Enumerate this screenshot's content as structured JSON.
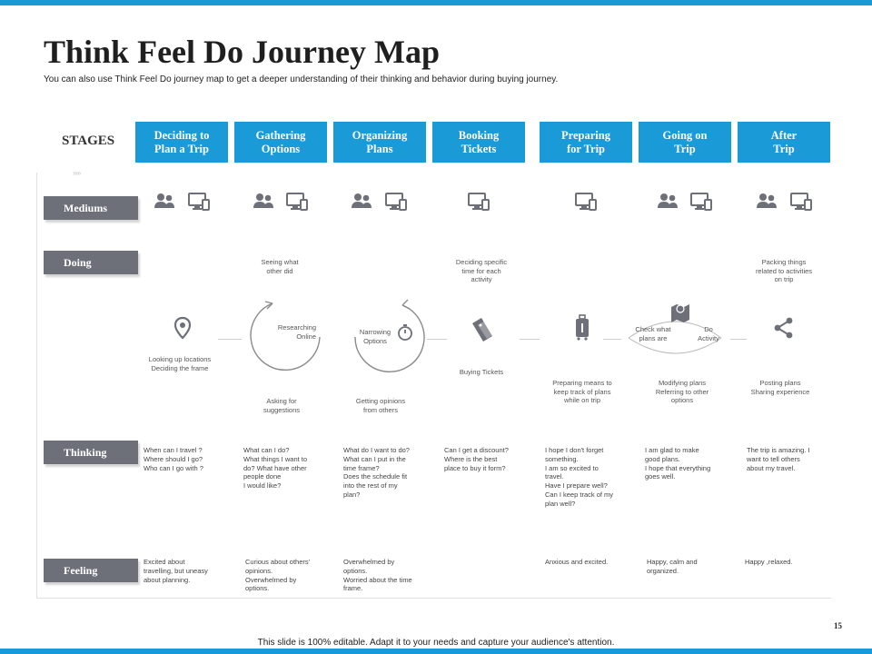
{
  "header": {
    "title": "Think Feel Do Journey Map",
    "subtitle": "You can also use Think  Feel Do journey map to get a deeper understanding of their thinking  and behavior during buying journey."
  },
  "stages": {
    "label": "STAGES",
    "items": [
      {
        "label": "Deciding to\nPlan a Trip"
      },
      {
        "label": "Gathering\nOptions"
      },
      {
        "label": "Organizing\nPlans"
      },
      {
        "label": "Booking\nTickets"
      },
      {
        "label": "Preparing\nfor Trip"
      },
      {
        "label": "Going on\nTrip"
      },
      {
        "label": "After\nTrip"
      }
    ]
  },
  "rows": {
    "mediums": "Mediums",
    "doing": "Doing",
    "thinking": "Thinking",
    "feeling": "Feeling"
  },
  "arrow_hint": "›››››",
  "doing": {
    "top": [
      "Seeing what\nother did",
      "Deciding specific\ntime for each\nactivity",
      "Packing things\nrelated to activities\non trip"
    ],
    "center": {
      "researching": "Researching\nOnline",
      "narrowing": "Narrowing\nOptions",
      "check_what": "Check what\nplans are",
      "do_activity": "Do\nActivity"
    },
    "bottom": [
      "Looking up locations\nDeciding the frame",
      "Asking for\nsuggestions",
      "Getting opinions\nfrom others",
      "Buying Tickets",
      "Preparing means to\nkeep track of plans\nwhile on trip",
      "Modifying plans\nReferring to other\noptions",
      "Posting plans\nSharing experience"
    ]
  },
  "thinking": [
    "When can I travel ?\nWhere should I go?\nWho can I go with ?",
    "What can I do?\nWhat things I want to\ndo? What have other\npeople done\nI would like?",
    "What do I want to do?\nWhat can I put in the\ntime frame?\nDoes the schedule  fit\ninto the rest of my\nplan?",
    "Can I get a discount?\nWhere is the best\nplace to buy it form?",
    "I hope I don't forget\nsomething.\nI am so excited to\ntravel.\nHave I prepare well?\nCan I keep track of my\nplan well?",
    "I am glad to make\ngood plans.\nI hope that everything\ngoes well.",
    "The trip is amazing. I\nwant to tell others\nabout  my travel."
  ],
  "feeling": [
    "Excited about\ntravelling, but uneasy\nabout planning.",
    "Curious about others'\nopinions.\nOverwhelmed by\noptions.",
    "Overwhelmed by\noptions.\nWorried about  the time\nframe.",
    "",
    "Anxious and excited.",
    "Happy, calm and\norganized.",
    "Happy ,relaxed."
  ],
  "page_number": "15",
  "footer": "This slide is 100% editable.  Adapt it to your needs and capture your audience's attention.",
  "colors": {
    "accent": "#1a9ad6",
    "label_bg": "#6d7079",
    "icon": "#6d7079"
  }
}
